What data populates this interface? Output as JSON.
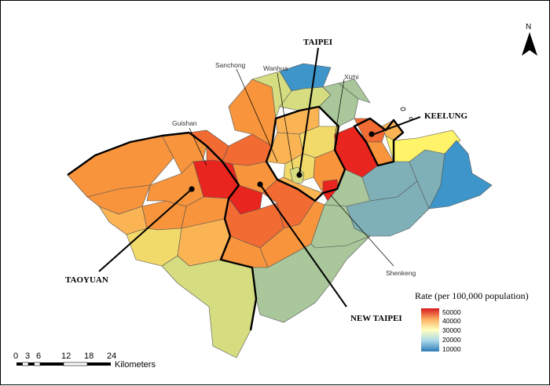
{
  "north_label": "N",
  "cities": [
    {
      "name": "TAIPEI"
    },
    {
      "name": "KEELUNG"
    },
    {
      "name": "TAOYUAN"
    },
    {
      "name": "NEW TAIPEI"
    }
  ],
  "districts_labeled": [
    {
      "name": "Wanhua"
    },
    {
      "name": "Sanchong"
    },
    {
      "name": "Xizhi"
    },
    {
      "name": "Guishan"
    },
    {
      "name": "Shenkeng"
    }
  ],
  "legend": {
    "title": "Rate (per 100,000 population)",
    "ticks": [
      "50000",
      "40000",
      "30000",
      "20000",
      "10000"
    ],
    "colors": [
      "#d7191c",
      "#fdae61",
      "#ffffbf",
      "#abd9e9",
      "#2c7bb6"
    ]
  },
  "scale": {
    "ticks": [
      "0",
      "3",
      "6",
      "12",
      "18",
      "24"
    ],
    "unit": "Kilometers"
  },
  "colors": {
    "very_high": "#e8251f",
    "high": "#f26b32",
    "mid_high": "#f7943c",
    "mid": "#fbb454",
    "mid_low": "#f2da6a",
    "low_mid": "#d6dd80",
    "low": "#a9c79a",
    "lower": "#7fb0b8",
    "lowest": "#3d95c9",
    "yellow": "#fff36a"
  }
}
